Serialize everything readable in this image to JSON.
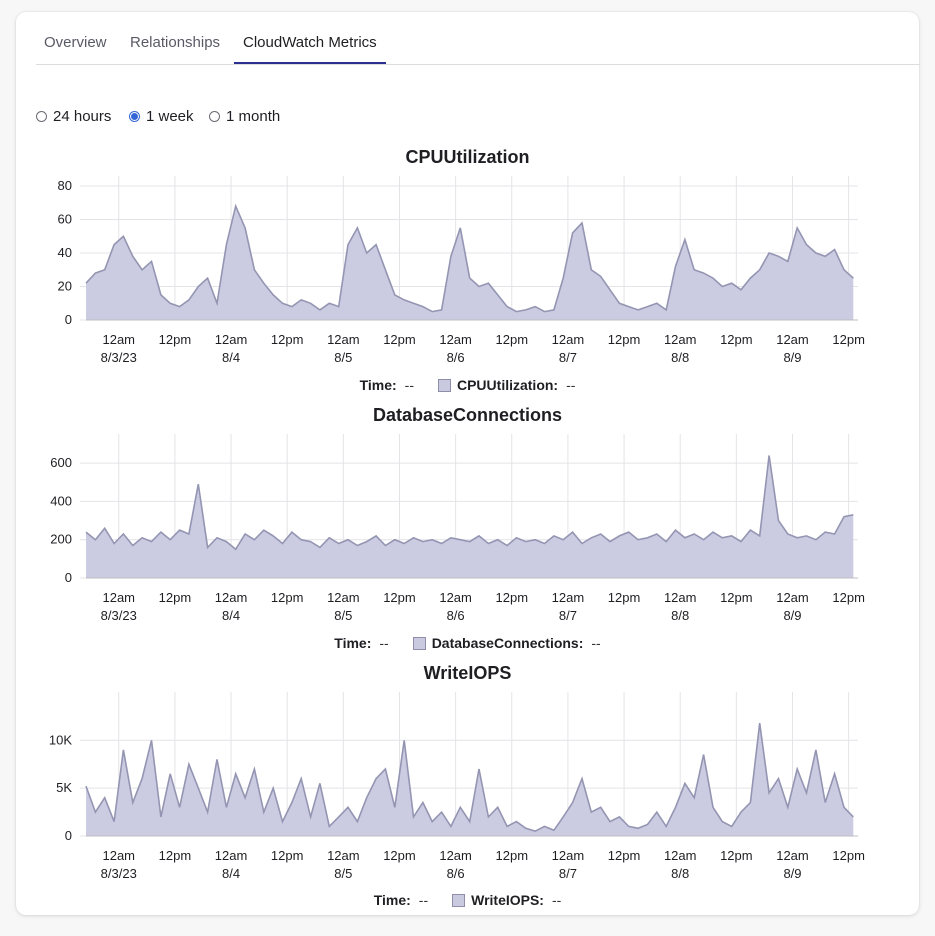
{
  "tabs": [
    "Overview",
    "Relationships",
    "CloudWatch Metrics"
  ],
  "active_tab": "CloudWatch Metrics",
  "time_range": {
    "options": [
      "24 hours",
      "1 week",
      "1 month"
    ],
    "selected": "1 week"
  },
  "legend_time_label": "Time:",
  "legend_placeholder": "--",
  "colors": {
    "series_line": "#9495b2",
    "series_fill": "#cbcbe1",
    "grid": "#e4e4e8",
    "accent": "#2b2f8f",
    "radio": "#3467d6"
  },
  "chart_data": [
    {
      "type": "area",
      "title": "CPUUtilization",
      "legend": "CPUUtilization:",
      "ylim": [
        0,
        80
      ],
      "yticks": [
        0,
        20,
        40,
        60,
        80
      ],
      "ytick_labels": [
        "0",
        "20",
        "40",
        "60",
        "80"
      ],
      "x_tick_top": [
        "12am",
        "12pm",
        "12am",
        "12pm",
        "12am",
        "12pm",
        "12am",
        "12pm",
        "12am",
        "12pm",
        "12am",
        "12pm",
        "12am",
        "12pm"
      ],
      "x_tick_bottom": [
        "8/3/23",
        "",
        "8/4",
        "",
        "8/5",
        "",
        "8/6",
        "",
        "8/7",
        "",
        "8/8",
        "",
        "8/9",
        ""
      ],
      "grid": true,
      "series": [
        {
          "x": [
            "8/2 17:00",
            "8/2 19:00",
            "8/2 21:00",
            "8/2 23:00",
            "8/3 01:00",
            "8/3 03:00",
            "8/3 05:00",
            "8/3 07:00",
            "8/3 09:00",
            "8/3 11:00",
            "8/3 13:00",
            "8/3 15:00",
            "8/3 17:00",
            "8/3 19:00",
            "8/3 21:00",
            "8/3 23:00",
            "8/4 01:00",
            "8/4 03:00",
            "8/4 05:00",
            "8/4 07:00",
            "8/4 09:00",
            "8/4 11:00",
            "8/4 13:00",
            "8/4 15:00",
            "8/4 17:00",
            "8/4 19:00",
            "8/4 21:00",
            "8/4 23:00",
            "8/5 01:00",
            "8/5 03:00",
            "8/5 05:00",
            "8/5 07:00",
            "8/5 09:00",
            "8/5 11:00",
            "8/5 13:00",
            "8/5 15:00",
            "8/5 17:00",
            "8/5 19:00",
            "8/5 21:00",
            "8/5 23:00",
            "8/6 01:00",
            "8/6 03:00",
            "8/6 05:00",
            "8/6 07:00",
            "8/6 09:00",
            "8/6 11:00",
            "8/6 13:00",
            "8/6 15:00",
            "8/6 17:00",
            "8/6 19:00",
            "8/6 21:00",
            "8/6 23:00",
            "8/7 01:00",
            "8/7 03:00",
            "8/7 05:00",
            "8/7 07:00",
            "8/7 09:00",
            "8/7 11:00",
            "8/7 13:00",
            "8/7 15:00",
            "8/7 17:00",
            "8/7 19:00",
            "8/7 21:00",
            "8/7 23:00",
            "8/8 01:00",
            "8/8 03:00",
            "8/8 05:00",
            "8/8 07:00",
            "8/8 09:00",
            "8/8 11:00",
            "8/8 13:00",
            "8/8 15:00",
            "8/8 17:00",
            "8/8 19:00",
            "8/8 21:00",
            "8/8 23:00",
            "8/9 01:00",
            "8/9 03:00",
            "8/9 05:00",
            "8/9 07:00",
            "8/9 09:00",
            "8/9 11:00",
            "8/9 13:00"
          ],
          "values": [
            22,
            28,
            30,
            45,
            50,
            38,
            30,
            35,
            15,
            10,
            8,
            12,
            20,
            25,
            10,
            45,
            68,
            55,
            30,
            22,
            15,
            10,
            8,
            12,
            10,
            6,
            10,
            8,
            45,
            55,
            40,
            45,
            30,
            15,
            12,
            10,
            8,
            5,
            6,
            38,
            55,
            25,
            20,
            22,
            15,
            8,
            5,
            6,
            8,
            5,
            6,
            25,
            52,
            58,
            30,
            26,
            18,
            10,
            8,
            6,
            8,
            10,
            6,
            32,
            48,
            30,
            28,
            25,
            20,
            22,
            18,
            25,
            30,
            40,
            38,
            35,
            55,
            45,
            40,
            38,
            42,
            30,
            25
          ]
        }
      ]
    },
    {
      "type": "area",
      "title": "DatabaseConnections",
      "legend": "DatabaseConnections:",
      "ylim": [
        0,
        700
      ],
      "yticks": [
        0,
        200,
        400,
        600
      ],
      "ytick_labels": [
        "0",
        "200",
        "400",
        "600"
      ],
      "x_tick_top": [
        "12am",
        "12pm",
        "12am",
        "12pm",
        "12am",
        "12pm",
        "12am",
        "12pm",
        "12am",
        "12pm",
        "12am",
        "12pm",
        "12am",
        "12pm"
      ],
      "x_tick_bottom": [
        "8/3/23",
        "",
        "8/4",
        "",
        "8/5",
        "",
        "8/6",
        "",
        "8/7",
        "",
        "8/8",
        "",
        "8/9",
        ""
      ],
      "grid": true,
      "series": [
        {
          "x": [
            "8/2 17:00",
            "8/2 19:00",
            "8/2 21:00",
            "8/2 23:00",
            "8/3 01:00",
            "8/3 03:00",
            "8/3 05:00",
            "8/3 07:00",
            "8/3 09:00",
            "8/3 11:00",
            "8/3 13:00",
            "8/3 15:00",
            "8/3 17:00",
            "8/3 19:00",
            "8/3 21:00",
            "8/3 23:00",
            "8/4 01:00",
            "8/4 03:00",
            "8/4 05:00",
            "8/4 07:00",
            "8/4 09:00",
            "8/4 11:00",
            "8/4 13:00",
            "8/4 15:00",
            "8/4 17:00",
            "8/4 19:00",
            "8/4 21:00",
            "8/4 23:00",
            "8/5 01:00",
            "8/5 03:00",
            "8/5 05:00",
            "8/5 07:00",
            "8/5 09:00",
            "8/5 11:00",
            "8/5 13:00",
            "8/5 15:00",
            "8/5 17:00",
            "8/5 19:00",
            "8/5 21:00",
            "8/5 23:00",
            "8/6 01:00",
            "8/6 03:00",
            "8/6 05:00",
            "8/6 07:00",
            "8/6 09:00",
            "8/6 11:00",
            "8/6 13:00",
            "8/6 15:00",
            "8/6 17:00",
            "8/6 19:00",
            "8/6 21:00",
            "8/6 23:00",
            "8/7 01:00",
            "8/7 03:00",
            "8/7 05:00",
            "8/7 07:00",
            "8/7 09:00",
            "8/7 11:00",
            "8/7 13:00",
            "8/7 15:00",
            "8/7 17:00",
            "8/7 19:00",
            "8/7 21:00",
            "8/7 23:00",
            "8/8 01:00",
            "8/8 03:00",
            "8/8 05:00",
            "8/8 07:00",
            "8/8 09:00",
            "8/8 11:00",
            "8/8 13:00",
            "8/8 15:00",
            "8/8 17:00",
            "8/8 19:00",
            "8/8 21:00",
            "8/8 23:00",
            "8/9 01:00",
            "8/9 03:00",
            "8/9 05:00",
            "8/9 07:00",
            "8/9 09:00",
            "8/9 11:00",
            "8/9 13:00"
          ],
          "values": [
            240,
            200,
            260,
            180,
            230,
            170,
            210,
            190,
            240,
            200,
            250,
            230,
            490,
            160,
            210,
            190,
            150,
            230,
            200,
            250,
            220,
            180,
            240,
            200,
            190,
            160,
            210,
            180,
            200,
            170,
            190,
            220,
            170,
            200,
            180,
            210,
            190,
            200,
            180,
            210,
            200,
            190,
            220,
            180,
            200,
            170,
            210,
            190,
            200,
            180,
            220,
            200,
            240,
            180,
            210,
            230,
            190,
            220,
            240,
            200,
            210,
            230,
            190,
            250,
            210,
            230,
            200,
            240,
            210,
            220,
            190,
            250,
            220,
            640,
            300,
            230,
            210,
            220,
            200,
            240,
            230,
            320,
            330
          ]
        }
      ]
    },
    {
      "type": "area",
      "title": "WriteIOPS",
      "legend": "WriteIOPS:",
      "ylim": [
        0,
        14000
      ],
      "yticks": [
        0,
        5000,
        10000
      ],
      "ytick_labels": [
        "0",
        "5K",
        "10K"
      ],
      "x_tick_top": [
        "12am",
        "12pm",
        "12am",
        "12pm",
        "12am",
        "12pm",
        "12am",
        "12pm",
        "12am",
        "12pm",
        "12am",
        "12pm",
        "12am",
        "12pm"
      ],
      "x_tick_bottom": [
        "8/3/23",
        "",
        "8/4",
        "",
        "8/5",
        "",
        "8/6",
        "",
        "8/7",
        "",
        "8/8",
        "",
        "8/9",
        ""
      ],
      "grid": true,
      "series": [
        {
          "x": [
            "8/2 17:00",
            "8/2 19:00",
            "8/2 21:00",
            "8/2 23:00",
            "8/3 01:00",
            "8/3 03:00",
            "8/3 05:00",
            "8/3 07:00",
            "8/3 09:00",
            "8/3 11:00",
            "8/3 13:00",
            "8/3 15:00",
            "8/3 17:00",
            "8/3 19:00",
            "8/3 21:00",
            "8/3 23:00",
            "8/4 01:00",
            "8/4 03:00",
            "8/4 05:00",
            "8/4 07:00",
            "8/4 09:00",
            "8/4 11:00",
            "8/4 13:00",
            "8/4 15:00",
            "8/4 17:00",
            "8/4 19:00",
            "8/4 21:00",
            "8/4 23:00",
            "8/5 01:00",
            "8/5 03:00",
            "8/5 05:00",
            "8/5 07:00",
            "8/5 09:00",
            "8/5 11:00",
            "8/5 13:00",
            "8/5 15:00",
            "8/5 17:00",
            "8/5 19:00",
            "8/5 21:00",
            "8/5 23:00",
            "8/6 01:00",
            "8/6 03:00",
            "8/6 05:00",
            "8/6 07:00",
            "8/6 09:00",
            "8/6 11:00",
            "8/6 13:00",
            "8/6 15:00",
            "8/6 17:00",
            "8/6 19:00",
            "8/6 21:00",
            "8/6 23:00",
            "8/7 01:00",
            "8/7 03:00",
            "8/7 05:00",
            "8/7 07:00",
            "8/7 09:00",
            "8/7 11:00",
            "8/7 13:00",
            "8/7 15:00",
            "8/7 17:00",
            "8/7 19:00",
            "8/7 21:00",
            "8/7 23:00",
            "8/8 01:00",
            "8/8 03:00",
            "8/8 05:00",
            "8/8 07:00",
            "8/8 09:00",
            "8/8 11:00",
            "8/8 13:00",
            "8/8 15:00",
            "8/8 17:00",
            "8/8 19:00",
            "8/8 21:00",
            "8/8 23:00",
            "8/9 01:00",
            "8/9 03:00",
            "8/9 05:00",
            "8/9 07:00",
            "8/9 09:00",
            "8/9 11:00",
            "8/9 13:00"
          ],
          "values": [
            5200,
            2500,
            4000,
            1500,
            9000,
            3500,
            6000,
            10000,
            2000,
            6500,
            3000,
            7500,
            5000,
            2500,
            8000,
            3000,
            6500,
            4000,
            7000,
            2500,
            5000,
            1500,
            3500,
            6000,
            2000,
            5500,
            1000,
            2000,
            3000,
            1500,
            4000,
            6000,
            7000,
            3000,
            10000,
            2000,
            3500,
            1500,
            2500,
            1000,
            3000,
            1500,
            7000,
            2000,
            3000,
            1000,
            1500,
            800,
            500,
            1000,
            600,
            2000,
            3500,
            6000,
            2500,
            3000,
            1500,
            2000,
            1000,
            800,
            1200,
            2500,
            1000,
            3000,
            5500,
            4000,
            8500,
            3000,
            1500,
            1000,
            2500,
            3500,
            11800,
            4500,
            6000,
            3000,
            7000,
            4500,
            9000,
            3500,
            6500,
            3000,
            2000
          ]
        }
      ]
    }
  ]
}
